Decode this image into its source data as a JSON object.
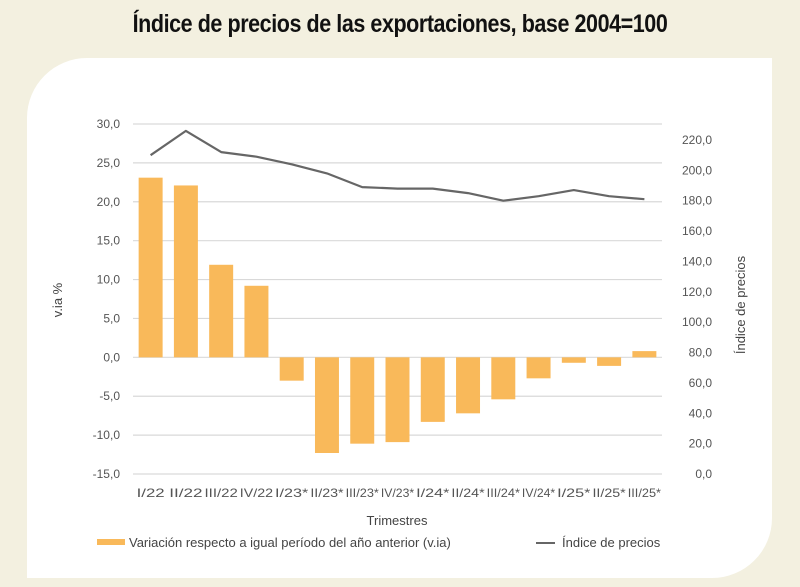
{
  "title": "Índice de precios de las exportaciones, base 2004=100",
  "chart_data": {
    "type": "bar+line",
    "title": "Índice de precios de las exportaciones, base 2004=100",
    "xlabel": "Trimestres",
    "ylabel": "v.ia %",
    "y2label": "Índice de precios",
    "categories": [
      "I/22",
      "II/22",
      "III/22",
      "IV/22",
      "I/23*",
      "II/23*",
      "III/23*",
      "IV/23*",
      "I/24*",
      "II/24*",
      "III/24*",
      "IV/24*",
      "I/25*",
      "II/25*",
      "III/25*"
    ],
    "ylim": [
      -15,
      30
    ],
    "yticks": [
      -15,
      -10,
      -5,
      0,
      5,
      10,
      15,
      20,
      25,
      30
    ],
    "ytick_labels": [
      "-15,0",
      "-10,0",
      "-5,0",
      "0,0",
      "5,0",
      "10,0",
      "15,0",
      "20,0",
      "25,0",
      "30,0"
    ],
    "y2lim": [
      0,
      220
    ],
    "y2ticks": [
      0,
      20,
      40,
      60,
      80,
      100,
      120,
      140,
      160,
      180,
      200,
      220
    ],
    "y2tick_labels": [
      "0,0",
      "20,0",
      "40,0",
      "60,0",
      "80,0",
      "100,0",
      "120,0",
      "140,0",
      "160,0",
      "180,0",
      "200,0",
      "220,0"
    ],
    "grid": true,
    "legend_position": "bottom",
    "series": [
      {
        "name": "Variación respecto a igual período del año anterior (v.ia)",
        "type": "bar",
        "axis": "left",
        "color": "#f9b95a",
        "values": [
          23.1,
          22.1,
          11.9,
          9.2,
          -3.0,
          -12.3,
          -11.1,
          -10.9,
          -8.3,
          -7.2,
          -5.4,
          -2.7,
          -0.7,
          -1.1,
          0.8
        ]
      },
      {
        "name": "Índice de precios",
        "type": "line",
        "axis": "right",
        "color": "#666666",
        "values": [
          210,
          226,
          212,
          209,
          204,
          198,
          189,
          188,
          188,
          185,
          180,
          183,
          187,
          183,
          181
        ]
      }
    ]
  }
}
